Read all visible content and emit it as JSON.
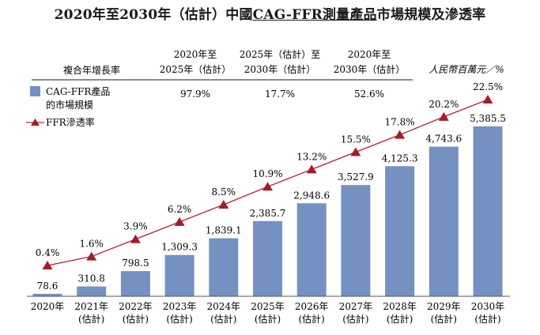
{
  "title": {
    "prefix": "2020年至2030年（估計）中國",
    "underlined": "CAG-FFR測量產品",
    "suffix": "市場規模及滲透率"
  },
  "cagr_table": {
    "label": "複合年增長率",
    "periods": [
      {
        "line1": "2020年至",
        "line2": "2025年（估計）",
        "value": "97.9%"
      },
      {
        "line1": "2025年（估計）至",
        "line2": "2030年（估計）",
        "value": "17.7%"
      },
      {
        "line1": "2020年至",
        "line2": "2030年（估計）",
        "value": "52.6%"
      }
    ]
  },
  "unit_label": "人民幣百萬元／%",
  "legend": {
    "bar_line1": "CAG-FFR產品",
    "bar_line2": "的市場規模",
    "line": "FFR滲透率"
  },
  "colors": {
    "bar": "#7491c2",
    "line": "#b8212e",
    "marker": "#a31c2a"
  },
  "chart_data": {
    "type": "bar",
    "categories": [
      "2020年",
      "2021年\n(估計)",
      "2022年\n(估計)",
      "2023年\n(估計)",
      "2024年\n(估計)",
      "2025年\n(估計)",
      "2026年\n(估計)",
      "2027年\n(估計)",
      "2028年\n(估計)",
      "2029年\n(估計)",
      "2030年\n(估計)"
    ],
    "series": [
      {
        "name": "CAG-FFR產品的市場規模",
        "type": "bar",
        "values": [
          78.6,
          310.8,
          798.5,
          1309.3,
          1839.1,
          2385.7,
          2948.6,
          3527.9,
          4125.3,
          4743.6,
          5385.5
        ],
        "labels": [
          "78.6",
          "310.8",
          "798.5",
          "1,309.3",
          "1,839.1",
          "2,385.7",
          "2,948.6",
          "3,527.9",
          "4,125.3",
          "4,743.6",
          "5,385.5"
        ]
      },
      {
        "name": "FFR滲透率",
        "type": "line",
        "values": [
          0.4,
          1.6,
          3.9,
          6.2,
          8.5,
          10.9,
          13.2,
          15.5,
          17.8,
          20.2,
          22.5
        ],
        "labels": [
          "0.4%",
          "1.6%",
          "3.9%",
          "6.2%",
          "8.5%",
          "10.9%",
          "13.2%",
          "15.5%",
          "17.8%",
          "20.2%",
          "22.5%"
        ]
      }
    ],
    "ylim": [
      0,
      5800
    ]
  }
}
